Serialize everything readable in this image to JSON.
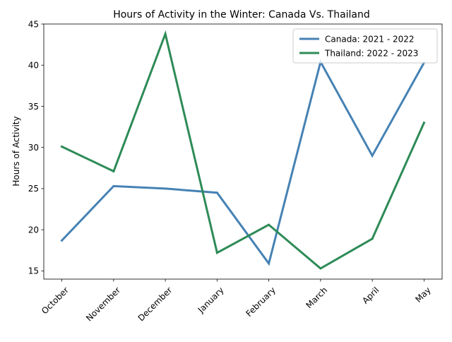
{
  "chart_data": {
    "type": "line",
    "title": "Hours of Activity in the Winter: Canada Vs. Thailand",
    "xlabel": "",
    "ylabel": "Hours of Activity",
    "categories": [
      "October",
      "November",
      "December",
      "January",
      "February",
      "March",
      "April",
      "May"
    ],
    "ylim": [
      14,
      45
    ],
    "yticks": [
      15,
      20,
      25,
      30,
      35,
      40,
      45
    ],
    "grid": false,
    "legend_position": "top-right",
    "series": [
      {
        "name": "Canada: 2021 - 2022",
        "color": "#4682b4",
        "values": [
          18.7,
          25.3,
          25.0,
          24.5,
          15.9,
          40.4,
          29.0,
          40.3
        ]
      },
      {
        "name": "Thailand: 2022 - 2023",
        "color": "#2e8b57",
        "values": [
          30.1,
          27.1,
          43.8,
          17.2,
          20.6,
          15.3,
          18.9,
          33.0
        ]
      }
    ]
  }
}
